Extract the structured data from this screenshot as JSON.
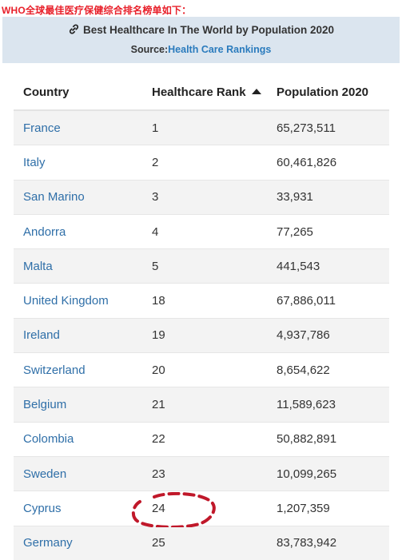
{
  "caption": "WHO全球最佳医疗保健综合排名榜单如下：",
  "header": {
    "title": "Best Healthcare In The World by Population 2020",
    "source_prefix": "Source:",
    "source_link": "Health Care Rankings",
    "title_icon": "link-icon"
  },
  "table": {
    "columns": [
      "Country",
      "Healthcare Rank",
      "Population 2020"
    ],
    "sort_icon": "sort-up-arrow-icon",
    "rows": [
      {
        "country": "France",
        "rank": "1",
        "population": "65,273,511"
      },
      {
        "country": "Italy",
        "rank": "2",
        "population": "60,461,826"
      },
      {
        "country": "San Marino",
        "rank": "3",
        "population": "33,931"
      },
      {
        "country": "Andorra",
        "rank": "4",
        "population": "77,265"
      },
      {
        "country": "Malta",
        "rank": "5",
        "population": "441,543"
      },
      {
        "country": "United Kingdom",
        "rank": "18",
        "population": "67,886,011"
      },
      {
        "country": "Ireland",
        "rank": "19",
        "population": "4,937,786"
      },
      {
        "country": "Switzerland",
        "rank": "20",
        "population": "8,654,622"
      },
      {
        "country": "Belgium",
        "rank": "21",
        "population": "11,589,623"
      },
      {
        "country": "Colombia",
        "rank": "22",
        "population": "50,882,891"
      },
      {
        "country": "Sweden",
        "rank": "23",
        "population": "10,099,265"
      },
      {
        "country": "Cyprus",
        "rank": "24",
        "population": "1,207,359"
      },
      {
        "country": "Germany",
        "rank": "25",
        "population": "83,783,942"
      }
    ]
  },
  "colors": {
    "caption": "#e8202a",
    "header_bg": "#dbe5ef",
    "link": "#2f6fa8",
    "circle": "#c0182a"
  }
}
